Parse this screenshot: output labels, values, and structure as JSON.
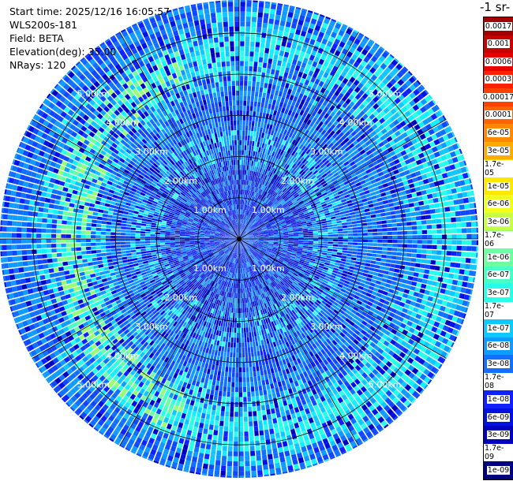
{
  "info": {
    "start_time": "Start time: 2025/12/16 16:05:57",
    "device": "WLS200s-181",
    "field": "Field: BETA",
    "elevation": "Elevation(deg): 35.00",
    "nrays": "NRays: 120"
  },
  "chart_data": {
    "type": "polar-ppi",
    "field": "BETA",
    "elevation_deg": 35.0,
    "n_rays": 120,
    "range_rings_km": [
      1,
      2,
      3,
      4,
      5
    ],
    "ring_labels": [
      "1.00km",
      "2.00km",
      "3.00km",
      "4.00km",
      "5.00km"
    ],
    "max_range_km": 5.8,
    "colorbar_title": "-1 sr-",
    "colorbar": {
      "labels": [
        "0.0017",
        "0.001",
        "0.0006",
        "0.0003",
        "0.00017",
        "0.0001",
        "6e-05",
        "3e-05",
        "1.7e-05",
        "1e-05",
        "6e-06",
        "3e-06",
        "1.7e-06",
        "1e-06",
        "6e-07",
        "3e-07",
        "1.7e-07",
        "1e-07",
        "6e-08",
        "3e-08",
        "1.7e-08",
        "1e-08",
        "6e-09",
        "3e-09",
        "1.7e-09",
        "1e-09"
      ],
      "colors": [
        "#a00000",
        "#c80000",
        "#e60000",
        "#ff2000",
        "#ff4000",
        "#ff6400",
        "#ff8a00",
        "#ffac00",
        "#ffcc00",
        "#ffe800",
        "#f0ff20",
        "#c8ff40",
        "#98ff70",
        "#70ffa0",
        "#48ffc8",
        "#28ffe8",
        "#10f0ff",
        "#10c8ff",
        "#109cff",
        "#1070ff",
        "#1048ff",
        "#1020ff",
        "#0010e0",
        "#0000c0",
        "#0000a0",
        "#000080"
      ]
    }
  }
}
